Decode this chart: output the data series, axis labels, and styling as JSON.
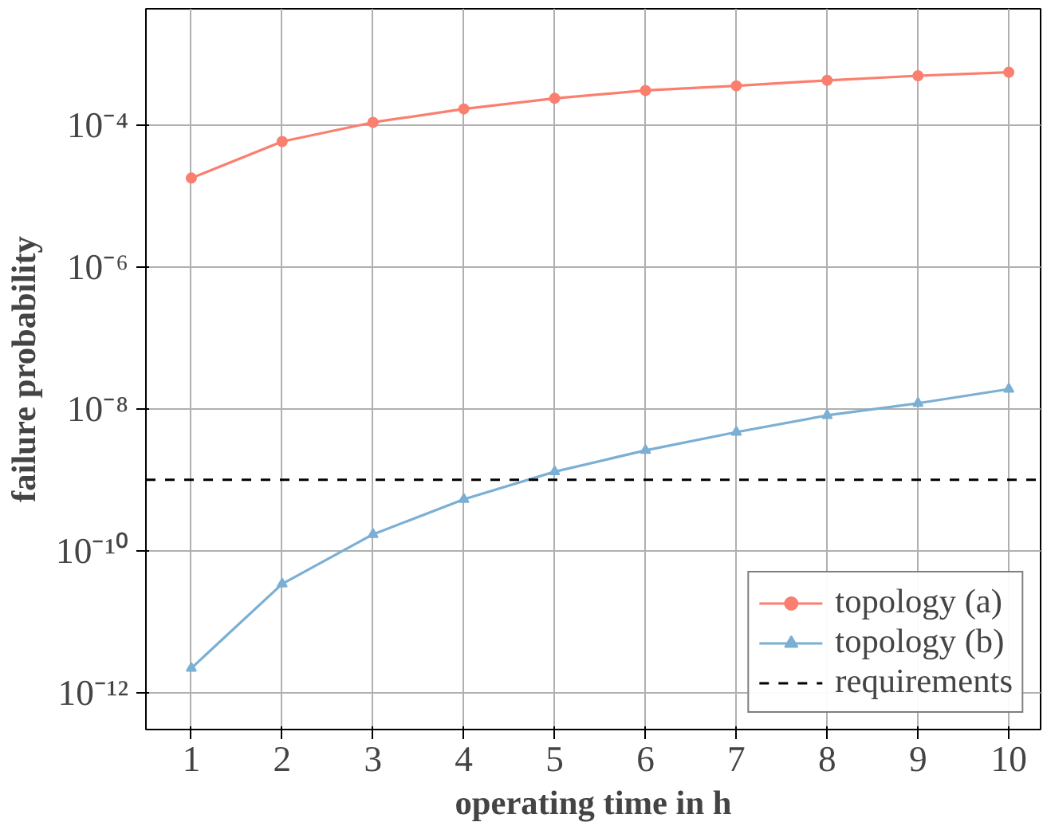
{
  "chart_data": {
    "type": "line",
    "xlabel": "operating time in h",
    "ylabel": "failure probability",
    "x": [
      1,
      2,
      3,
      4,
      5,
      6,
      7,
      8,
      9,
      10
    ],
    "series": [
      {
        "name": "topology (a)",
        "color": "#fa7f6f",
        "marker": "circle",
        "values": [
          1.8e-05,
          5.9e-05,
          0.00011,
          0.00017,
          0.00024,
          0.00031,
          0.00036,
          0.00043,
          0.0005,
          0.00056
        ]
      },
      {
        "name": "topology (b)",
        "color": "#7bafd4",
        "marker": "triangle",
        "values": [
          2.2e-12,
          3.4e-11,
          1.7e-10,
          5.3e-10,
          1.3e-09,
          2.6e-09,
          4.7e-09,
          8.1e-09,
          1.2e-08,
          1.9e-08
        ]
      }
    ],
    "ref_lines": [
      {
        "axis": "y",
        "value": 1e-09,
        "label": "requirements",
        "color": "#000000",
        "line_style": "dashed"
      }
    ],
    "log": "y",
    "xlim": [
      0.5,
      10.35
    ],
    "ylim": [
      3e-13,
      0.0044
    ],
    "xticks": [
      1,
      2,
      3,
      4,
      5,
      6,
      7,
      8,
      9,
      10
    ],
    "yticks": [
      {
        "value": 1e-12,
        "label": "10⁻¹²"
      },
      {
        "value": 1e-10,
        "label": "10⁻¹⁰"
      },
      {
        "value": 1e-08,
        "label": "10⁻⁸"
      },
      {
        "value": 1e-06,
        "label": "10⁻⁶"
      },
      {
        "value": 0.0001,
        "label": "10⁻⁴"
      }
    ],
    "grid": true,
    "legend": "bottom right"
  }
}
